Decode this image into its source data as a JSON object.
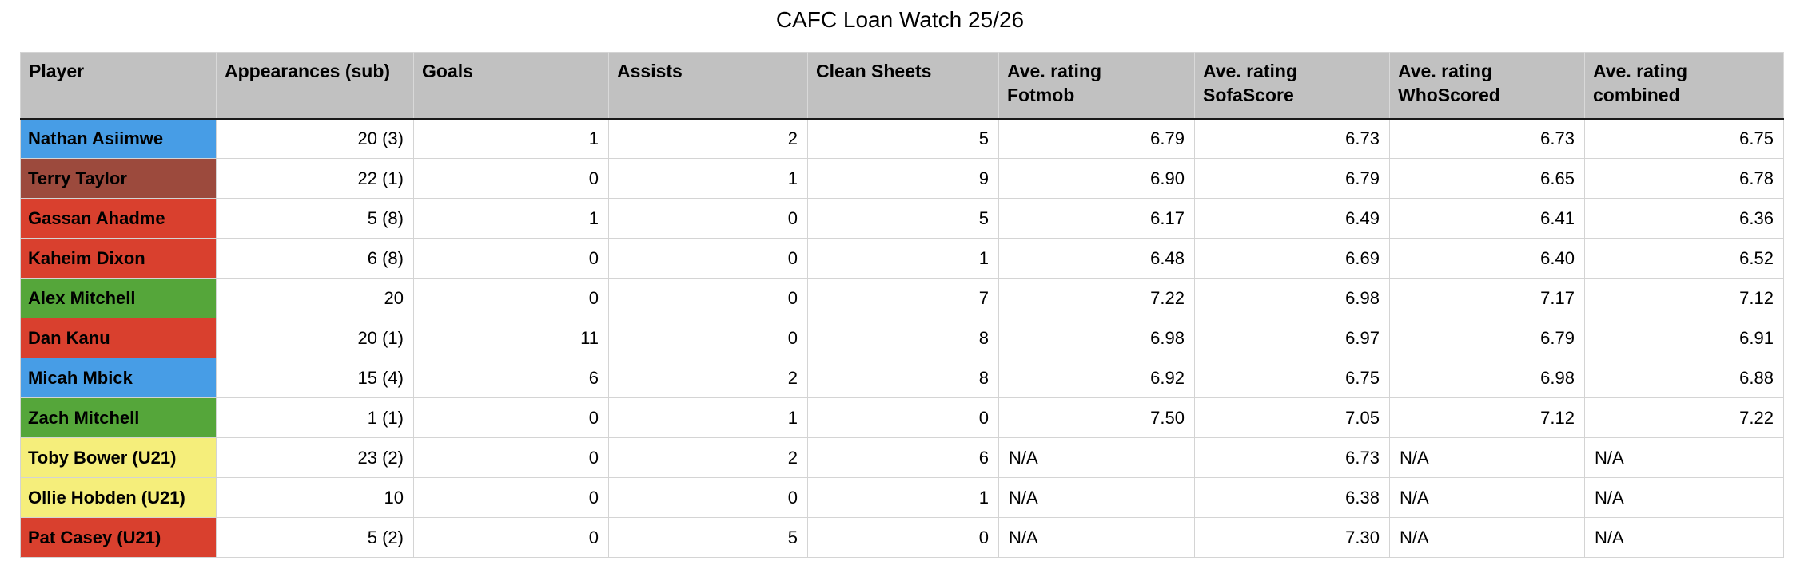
{
  "title": "CAFC Loan Watch 25/26",
  "colors": {
    "header_bg": "#c1c1c1",
    "grid_line": "#d4d4d4",
    "header_underline": "#1a1a1a",
    "row_colors": {
      "blue": "#479de6",
      "red": "#d9402e",
      "green": "#55a63a",
      "yellow": "#f5ee7b",
      "brown": "#9c4a3d"
    }
  },
  "table": {
    "columns": [
      "Player",
      "Appearances (sub)",
      "Goals",
      "Assists",
      "Clean Sheets",
      "Ave. rating\nFotmob",
      "Ave. rating\nSofaScore",
      "Ave. rating\nWhoScored",
      "Ave. rating\ncombined"
    ],
    "column_fields": [
      "player",
      "appearances",
      "goals",
      "assists",
      "clean_sheets",
      "fotmob",
      "sofascore",
      "whoscored",
      "combined"
    ],
    "rows": [
      {
        "player": "Nathan Asiimwe",
        "color": "blue",
        "appearances": "20 (3)",
        "goals": "1",
        "assists": "2",
        "clean_sheets": "5",
        "fotmob": "6.79",
        "sofascore": "6.73",
        "whoscored": "6.73",
        "combined": "6.75"
      },
      {
        "player": "Terry Taylor",
        "color": "brown",
        "appearances": "22 (1)",
        "goals": "0",
        "assists": "1",
        "clean_sheets": "9",
        "fotmob": "6.90",
        "sofascore": "6.79",
        "whoscored": "6.65",
        "combined": "6.78"
      },
      {
        "player": "Gassan Ahadme",
        "color": "red",
        "appearances": "5 (8)",
        "goals": "1",
        "assists": "0",
        "clean_sheets": "5",
        "fotmob": "6.17",
        "sofascore": "6.49",
        "whoscored": "6.41",
        "combined": "6.36"
      },
      {
        "player": "Kaheim Dixon",
        "color": "red",
        "appearances": "6 (8)",
        "goals": "0",
        "assists": "0",
        "clean_sheets": "1",
        "fotmob": "6.48",
        "sofascore": "6.69",
        "whoscored": "6.40",
        "combined": "6.52"
      },
      {
        "player": "Alex Mitchell",
        "color": "green",
        "appearances": "20",
        "goals": "0",
        "assists": "0",
        "clean_sheets": "7",
        "fotmob": "7.22",
        "sofascore": "6.98",
        "whoscored": "7.17",
        "combined": "7.12"
      },
      {
        "player": "Dan Kanu",
        "color": "red",
        "appearances": "20 (1)",
        "goals": "11",
        "assists": "0",
        "clean_sheets": "8",
        "fotmob": "6.98",
        "sofascore": "6.97",
        "whoscored": "6.79",
        "combined": "6.91"
      },
      {
        "player": "Micah Mbick",
        "color": "blue",
        "appearances": "15 (4)",
        "goals": "6",
        "assists": "2",
        "clean_sheets": "8",
        "fotmob": "6.92",
        "sofascore": "6.75",
        "whoscored": "6.98",
        "combined": "6.88"
      },
      {
        "player": "Zach Mitchell",
        "color": "green",
        "appearances": "1 (1)",
        "goals": "0",
        "assists": "1",
        "clean_sheets": "0",
        "fotmob": "7.50",
        "sofascore": "7.05",
        "whoscored": "7.12",
        "combined": "7.22"
      },
      {
        "player": "Toby Bower (U21)",
        "color": "yellow",
        "appearances": "23 (2)",
        "goals": "0",
        "assists": "2",
        "clean_sheets": "6",
        "fotmob": "N/A",
        "sofascore": "6.73",
        "whoscored": "N/A",
        "combined": "N/A"
      },
      {
        "player": "Ollie Hobden (U21)",
        "color": "yellow",
        "appearances": "10",
        "goals": "0",
        "assists": "0",
        "clean_sheets": "1",
        "fotmob": "N/A",
        "sofascore": "6.38",
        "whoscored": "N/A",
        "combined": "N/A"
      },
      {
        "player": "Pat Casey (U21)",
        "color": "red",
        "appearances": "5 (2)",
        "goals": "0",
        "assists": "5",
        "clean_sheets": "0",
        "fotmob": "N/A",
        "sofascore": "7.30",
        "whoscored": "N/A",
        "combined": "N/A"
      }
    ]
  }
}
